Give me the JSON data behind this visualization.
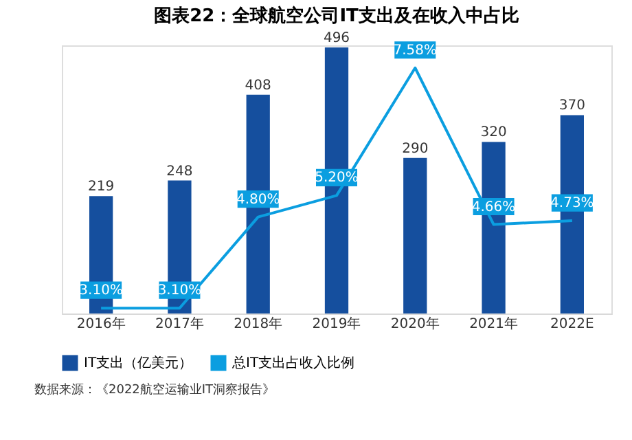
{
  "chart_data": {
    "type": "bar",
    "title": "图表22：全球航空公司IT支出及在收入中占比",
    "categories": [
      "2016年",
      "2017年",
      "2018年",
      "2019年",
      "2020年",
      "2021年",
      "2022E"
    ],
    "series": [
      {
        "name": "IT支出（亿美元）",
        "color": "#154f9e",
        "values": [
          219,
          248,
          408,
          496,
          290,
          320,
          370
        ],
        "value_labels": [
          "219",
          "248",
          "408",
          "496",
          "290",
          "320",
          "370"
        ]
      },
      {
        "name": "总IT支出占收入比例",
        "type": "line",
        "axis": "y2",
        "color": "#0b9ee0",
        "values": [
          3.1,
          3.1,
          4.8,
          5.2,
          7.58,
          4.66,
          4.73
        ],
        "value_labels": [
          "3.10%",
          "3.10%",
          "4.80%",
          "5.20%",
          "7.58%",
          "4.66%",
          "4.73%"
        ]
      }
    ],
    "tick_labels": "x",
    "grid": false,
    "legend": "bottom",
    "marker": "none",
    "annotations": [
      "数据来源：《2022航空运输业IT洞察报告》"
    ]
  }
}
